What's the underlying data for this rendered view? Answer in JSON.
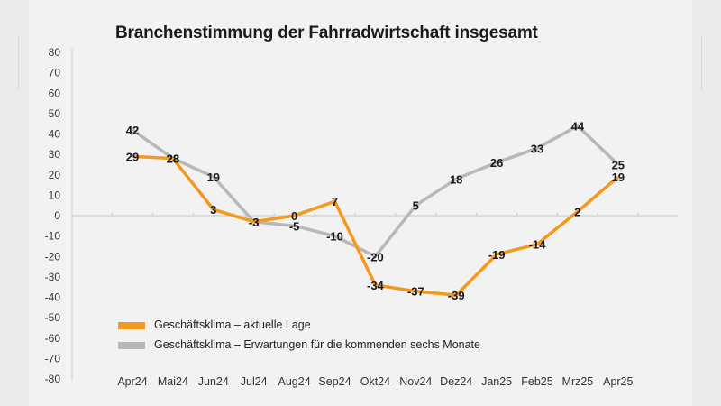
{
  "chart_data": {
    "type": "line",
    "title": "Branchenstimmung der Fahrradwirtschaft insgesamt",
    "categories": [
      "Apr24",
      "Mai24",
      "Jun24",
      "Jul24",
      "Aug24",
      "Sep24",
      "Okt24",
      "Nov24",
      "Dez24",
      "Jan25",
      "Feb25",
      "Mrz25",
      "Apr25"
    ],
    "ylim": [
      -80,
      80
    ],
    "yticks": [
      80,
      70,
      60,
      50,
      40,
      30,
      20,
      10,
      0,
      -10,
      -20,
      -30,
      -40,
      -50,
      -60,
      -70,
      -80
    ],
    "grid": false,
    "legend_position": "bottom-left",
    "series": [
      {
        "name": "Geschäftsklima – aktuelle Lage",
        "color": "#f39a1e",
        "values": [
          29,
          28,
          3,
          -3,
          0,
          7,
          -34,
          -37,
          -39,
          -19,
          -14,
          2,
          19
        ]
      },
      {
        "name": "Geschäftsklima – Erwartungen für die kommenden sechs Monate",
        "color": "#b8b8b8",
        "values": [
          42,
          28,
          19,
          -3,
          -5,
          -10,
          -20,
          5,
          18,
          26,
          33,
          44,
          25
        ]
      }
    ]
  }
}
